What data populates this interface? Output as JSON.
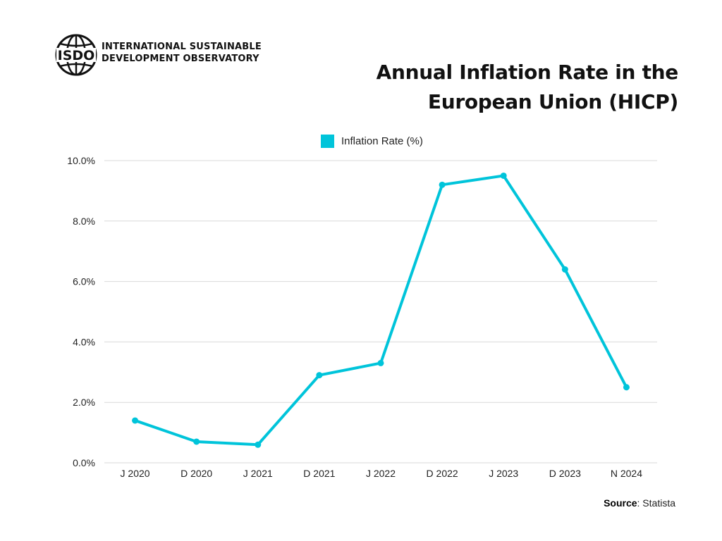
{
  "header": {
    "org_name_line1": "INTERNATIONAL SUSTAINABLE",
    "org_name_line2": "DEVELOPMENT OBSERVATORY",
    "logo_text": "ISDO",
    "logo_icon": "globe-icon"
  },
  "title_line1": "Annual Inflation Rate in the",
  "title_line2": "European Union (HICP)",
  "source": {
    "label": "Source",
    "value": ": Statista"
  },
  "colors": {
    "line": "#00c4da",
    "grid": "#d9d9d9",
    "text": "#222222"
  },
  "chart_data": {
    "type": "line",
    "title": "Annual Inflation Rate in the European Union (HICP)",
    "xlabel": "",
    "ylabel": "",
    "categories": [
      "J 2020",
      "D 2020",
      "J 2021",
      "D 2021",
      "J 2022",
      "D 2022",
      "J 2023",
      "D 2023",
      "N 2024"
    ],
    "series": [
      {
        "name": "Inflation Rate (%)",
        "values": [
          1.4,
          0.7,
          0.6,
          2.9,
          3.3,
          9.2,
          9.5,
          6.4,
          2.5
        ]
      }
    ],
    "ylim": [
      0,
      10
    ],
    "yticks": [
      0,
      2,
      4,
      6,
      8,
      10
    ],
    "ytick_labels": [
      "0.0%",
      "2.0%",
      "4.0%",
      "6.0%",
      "8.0%",
      "10.0%"
    ],
    "grid": true,
    "legend": "top-center"
  }
}
